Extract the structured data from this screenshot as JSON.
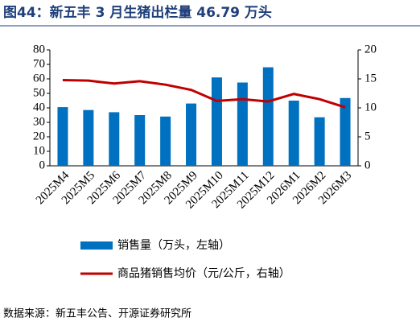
{
  "chart_data": {
    "type": "bar-line",
    "title": "图44：新五丰 3 月生猪出栏量 46.79 万头",
    "source": "数据来源：新五丰公告、开源证券研究所",
    "categories": [
      "2025M4",
      "2025M5",
      "2025M6",
      "2025M7",
      "2025M8",
      "2025M9",
      "2025M10",
      "2025M11",
      "2025M12",
      "2026M1",
      "2026M2",
      "2026M3"
    ],
    "series": [
      {
        "name": "销售量（万头，左轴）",
        "color": "#0070c0",
        "type": "bar",
        "values": [
          40.5,
          38.5,
          37,
          35,
          34,
          43,
          61,
          57.5,
          68,
          45,
          33.5,
          46.79
        ]
      },
      {
        "name": "商品猪销售均价（元/公斤，右轴）",
        "color": "#c00000",
        "type": "line",
        "axis": "y2",
        "values": [
          14.8,
          14.7,
          14.2,
          14.6,
          14.0,
          13.1,
          11.2,
          11.5,
          11.1,
          12.4,
          11.5,
          10.1
        ]
      }
    ],
    "ylim": [
      0,
      80
    ],
    "yticks": [
      0,
      10,
      20,
      30,
      40,
      50,
      60,
      70,
      80
    ],
    "y2lim": [
      0,
      20
    ],
    "y2ticks": [
      0,
      5,
      10,
      15,
      20
    ]
  }
}
